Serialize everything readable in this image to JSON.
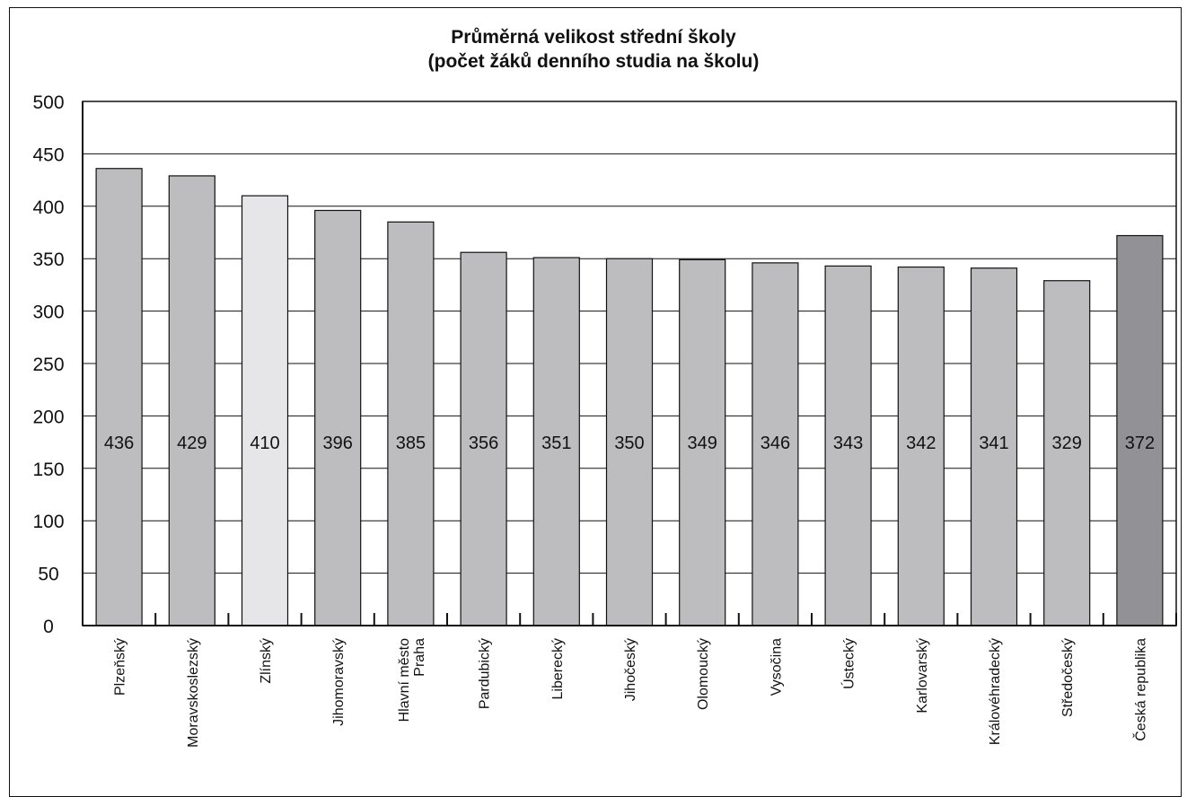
{
  "chart_data": {
    "type": "bar",
    "title": "Průměrná velikost střední školy",
    "subtitle": "(počet žáků denního studia na školu)",
    "xlabel": "",
    "ylabel": "",
    "ylim": [
      0,
      500
    ],
    "yticks": [
      "0",
      "50",
      "100",
      "150",
      "200",
      "250",
      "300",
      "350",
      "400",
      "450",
      "500"
    ],
    "grid": true,
    "categories": [
      [
        "Plzeňský"
      ],
      [
        "Moravskoslezský"
      ],
      [
        "Zlínský"
      ],
      [
        "Jihomoravský"
      ],
      [
        "Hlavní město",
        "Praha"
      ],
      [
        "Pardubický"
      ],
      [
        "Liberecký"
      ],
      [
        "Jihočeský"
      ],
      [
        "Olomoucký"
      ],
      [
        "Vysočina"
      ],
      [
        "Ústecký"
      ],
      [
        "Karlovarský"
      ],
      [
        "Královéhradecký"
      ],
      [
        "Středočeský"
      ],
      [
        "Česká republika"
      ]
    ],
    "values": [
      436,
      429,
      410,
      396,
      385,
      356,
      351,
      350,
      349,
      346,
      343,
      342,
      341,
      329,
      372
    ],
    "value_labels": [
      "436",
      "429",
      "410",
      "396",
      "385",
      "356",
      "351",
      "350",
      "349",
      "346",
      "343",
      "342",
      "341",
      "329",
      "372"
    ],
    "bar_colors": [
      "#bdbdc0",
      "#bdbdc0",
      "#e6e6e8",
      "#bdbdc0",
      "#bdbdc0",
      "#bdbdc0",
      "#bdbdc0",
      "#bdbdc0",
      "#bdbdc0",
      "#bdbdc0",
      "#bdbdc0",
      "#bdbdc0",
      "#bdbdc0",
      "#bdbdc0",
      "#929296"
    ]
  }
}
